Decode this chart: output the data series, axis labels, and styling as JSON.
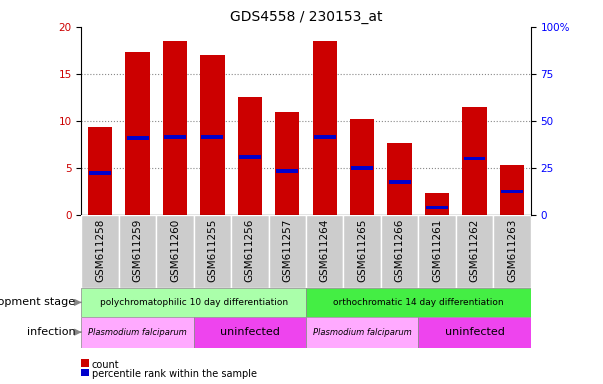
{
  "title": "GDS4558 / 230153_at",
  "categories": [
    "GSM611258",
    "GSM611259",
    "GSM611260",
    "GSM611255",
    "GSM611256",
    "GSM611257",
    "GSM611264",
    "GSM611265",
    "GSM611266",
    "GSM611261",
    "GSM611262",
    "GSM611263"
  ],
  "bar_values": [
    9.4,
    17.3,
    18.5,
    17.0,
    12.5,
    11.0,
    18.5,
    10.2,
    7.7,
    2.3,
    11.5,
    5.3
  ],
  "percentile_values": [
    4.5,
    8.2,
    8.3,
    8.3,
    6.2,
    4.7,
    8.3,
    5.0,
    3.5,
    0.8,
    6.0,
    2.5
  ],
  "bar_color": "#cc0000",
  "percentile_color": "#0000cc",
  "ylim_left": [
    0,
    20
  ],
  "ylim_right": [
    0,
    100
  ],
  "yticks_left": [
    0,
    5,
    10,
    15,
    20
  ],
  "yticks_right": [
    0,
    25,
    50,
    75,
    100
  ],
  "yticklabels_right": [
    "0",
    "25",
    "50",
    "75",
    "100%"
  ],
  "dev_stage_groups": [
    {
      "label": "polychromatophilic 10 day differentiation",
      "start": 0,
      "end": 5,
      "color": "#aaffaa"
    },
    {
      "label": "orthochromatic 14 day differentiation",
      "start": 6,
      "end": 11,
      "color": "#44ee44"
    }
  ],
  "infection_groups": [
    {
      "label": "Plasmodium falciparum",
      "start": 0,
      "end": 2,
      "color": "#ffaaff"
    },
    {
      "label": "uninfected",
      "start": 3,
      "end": 5,
      "color": "#ee44ee"
    },
    {
      "label": "Plasmodium falciparum",
      "start": 6,
      "end": 8,
      "color": "#ffaaff"
    },
    {
      "label": "uninfected",
      "start": 9,
      "end": 11,
      "color": "#ee44ee"
    }
  ],
  "dev_stage_label": "development stage",
  "infection_label": "infection",
  "legend_count_label": "count",
  "legend_pct_label": "percentile rank within the sample",
  "bar_width": 0.65,
  "title_fontsize": 10,
  "tick_fontsize": 7.5,
  "background_color": "#ffffff",
  "grid_color": "#888888",
  "xtick_bg_color": "#cccccc",
  "xtick_border_color": "#ffffff"
}
